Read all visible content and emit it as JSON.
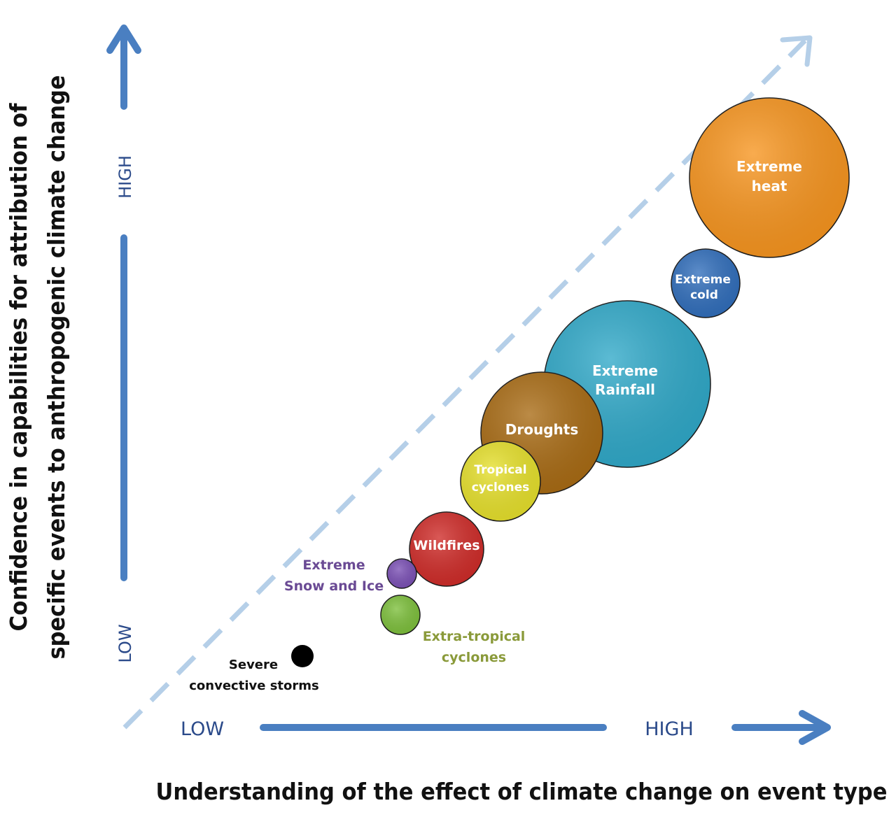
{
  "y_axis": {
    "title_line1": "Confidence in capabilities for attribution of",
    "title_line2": "specific events to anthropogenic climate change",
    "high": "HIGH",
    "low": "LOW"
  },
  "x_axis": {
    "title": "Understanding of the effect of climate change on event type",
    "low": "LOW",
    "high": "HIGH"
  },
  "colors": {
    "arrow": "#4a7fc1",
    "dashed_line": "#b5cfe8",
    "axis_level_text": "#2b4a8a"
  },
  "events": [
    {
      "id": "extreme-heat",
      "line1": "Extreme",
      "line2": "heat",
      "color": "#f7941d",
      "label_color": "#ffffff"
    },
    {
      "id": "extreme-cold",
      "line1": "Extreme",
      "line2": "cold",
      "color": "#2f6dbb",
      "label_color": "#ffffff"
    },
    {
      "id": "extreme-rainfall",
      "line1": "Extreme",
      "line2": "Rainfall",
      "color": "#2ea8c8",
      "label_color": "#ffffff"
    },
    {
      "id": "droughts",
      "line1": "Droughts",
      "line2": "",
      "color": "#a86a12",
      "label_color": "#ffffff"
    },
    {
      "id": "tropical-cyclones",
      "line1": "Tropical",
      "line2": "cyclones",
      "color": "#e6e02a",
      "label_color": "#ffffff"
    },
    {
      "id": "wildfires",
      "line1": "Wildfires",
      "line2": "",
      "color": "#cf2a27",
      "label_color": "#ffffff"
    },
    {
      "id": "extreme-snow-and-ice",
      "line1": "Extreme",
      "line2": "Snow and Ice",
      "color": "#7a4fb5",
      "label_color": "#6a4a94"
    },
    {
      "id": "extra-tropical-cyclones",
      "line1": "Extra-tropical",
      "line2": "cyclones",
      "color": "#7cbf3a",
      "label_color": "#8a9a3a"
    },
    {
      "id": "severe-convective-storms",
      "line1": "Severe",
      "line2": "convective storms",
      "color": "#000000",
      "label_color": "#111111"
    }
  ]
}
